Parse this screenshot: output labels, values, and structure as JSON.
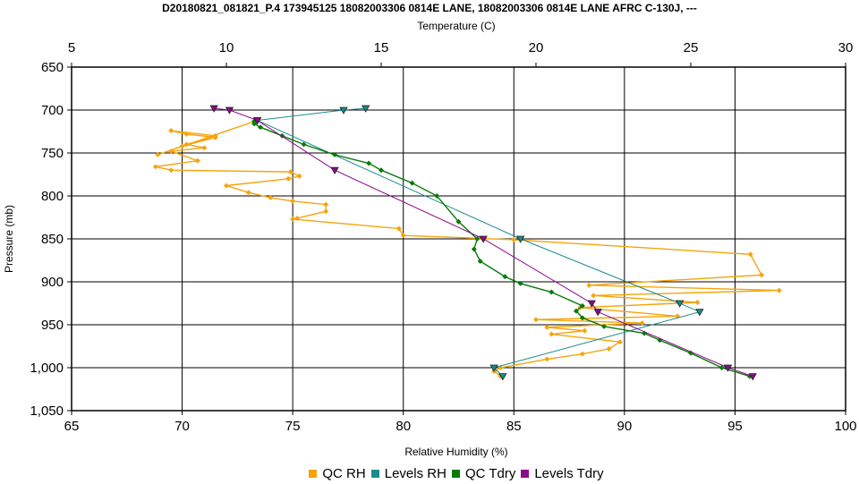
{
  "chart_data": {
    "type": "line",
    "title": "D20180821_081821_P.4 173945125 18082003306 0814E LANE, 18082003306 0814E LANE AFRC C-130J, ---",
    "xlabel": "Relative Humidity (%)",
    "x2label": "Temperature (C)",
    "ylabel": "Pressure (mb)",
    "xlim": [
      65,
      100
    ],
    "x2lim": [
      5,
      30
    ],
    "ylim": [
      650,
      1050
    ],
    "y_reversed": true,
    "grid": true,
    "legend_position": "bottom",
    "x_ticks": [
      "65",
      "70",
      "75",
      "80",
      "85",
      "90",
      "95",
      "100"
    ],
    "x2_ticks": [
      "5",
      "10",
      "15",
      "20",
      "25",
      "30"
    ],
    "y_ticks": [
      "650",
      "700",
      "750",
      "800",
      "850",
      "900",
      "950",
      "1,000",
      "1,050"
    ],
    "series": [
      {
        "name": "QC RH",
        "axis": "x",
        "color": "#F5A40B",
        "marker": "diamond",
        "x": [
          84.4,
          84.1,
          84.4,
          86.5,
          88.1,
          89.3,
          89.8,
          86.7,
          88.2,
          86.5,
          90.8,
          86.0,
          92.4,
          88.0,
          93.3,
          88.6,
          97.0,
          88.4,
          96.2,
          95.7,
          85.0,
          80.0,
          79.8,
          75.0,
          75.2,
          76.5,
          76.5,
          75.0,
          74.0,
          73.0,
          72.0,
          74.8,
          75.3,
          74.9,
          69.5,
          68.8,
          70.7,
          69.5,
          71.0,
          70.2,
          71.5,
          69.5,
          70.2,
          71.5,
          70.0,
          68.9,
          73.4
        ],
        "y": [
          1010,
          1004,
          1000,
          990,
          984,
          978,
          970,
          961,
          957,
          953,
          948,
          944,
          940,
          930,
          924,
          916,
          910,
          904,
          892,
          868,
          851,
          846,
          838,
          827,
          826,
          818,
          810,
          806,
          802,
          796,
          788,
          780,
          777,
          772,
          770,
          766,
          759,
          748,
          744,
          740,
          730,
          724,
          728,
          732,
          742,
          752,
          712
        ]
      },
      {
        "name": "Levels RH",
        "axis": "x",
        "color": "#1B8A8E",
        "marker": "triangle",
        "x": [
          84.5,
          84.1,
          93.4,
          92.5,
          85.3,
          73.4,
          77.3,
          78.3
        ],
        "y": [
          1010,
          1000,
          935,
          925,
          850,
          712,
          700,
          698
        ]
      },
      {
        "name": "QC Tdry",
        "axis": "x2",
        "color": "#0A7A0A",
        "marker": "diamond",
        "x": [
          26.9,
          26.0,
          25.0,
          24.0,
          23.5,
          22.2,
          21.5,
          21.3,
          21.5,
          20.5,
          19.5,
          19.0,
          18.2,
          18.0,
          18.1,
          17.5,
          16.8,
          16.0,
          15.0,
          14.6,
          13.5,
          12.5,
          11.8,
          11.1,
          10.9,
          10.9,
          11.0
        ],
        "y": [
          1010,
          1000,
          983,
          968,
          960,
          952,
          942,
          934,
          928,
          912,
          902,
          894,
          876,
          862,
          850,
          830,
          800,
          785,
          770,
          762,
          752,
          740,
          730,
          720,
          716,
          713,
          712
        ]
      },
      {
        "name": "Levels Tdry",
        "axis": "x2",
        "color": "#8B0A8B",
        "marker": "triangle",
        "x": [
          27.0,
          26.2,
          22.0,
          21.8,
          18.3,
          13.5,
          11.0,
          10.1,
          9.6
        ],
        "y": [
          1010,
          1000,
          935,
          925,
          850,
          770,
          712,
          700,
          698
        ]
      }
    ]
  }
}
